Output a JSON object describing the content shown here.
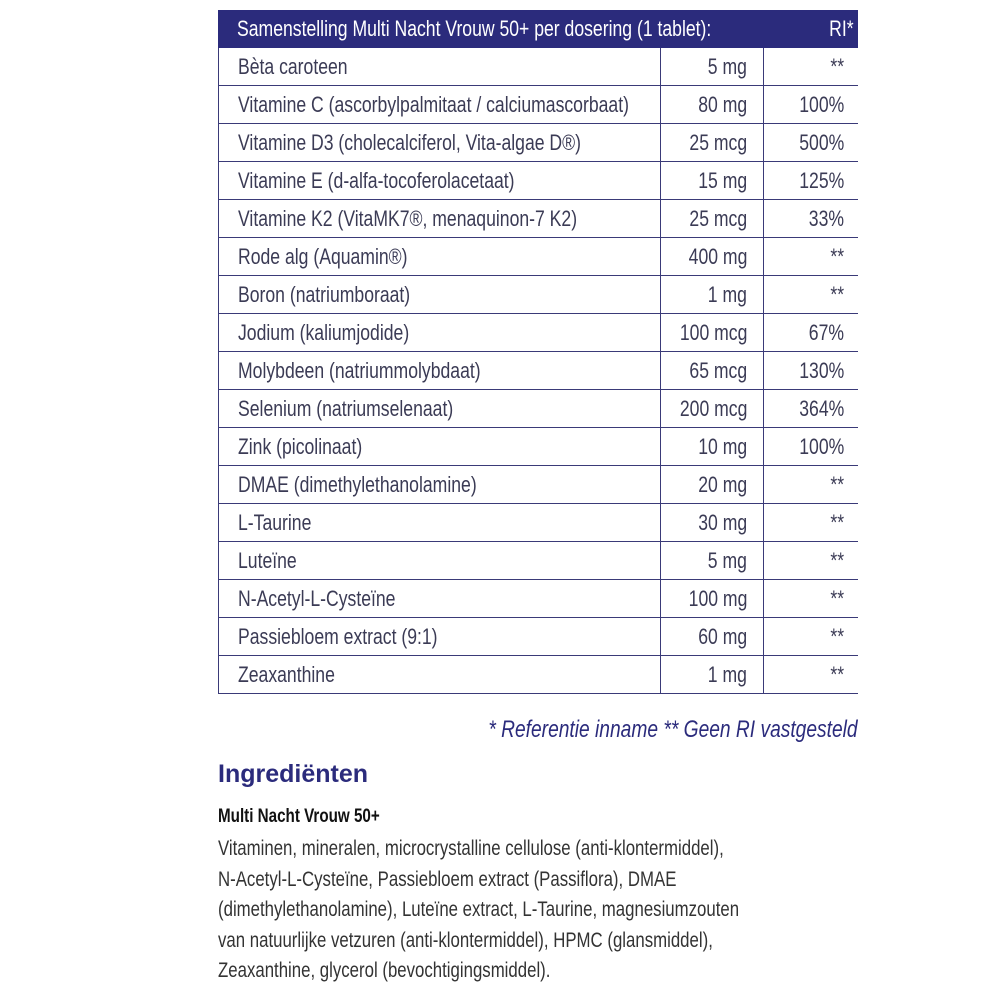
{
  "table": {
    "header": {
      "title": "Samenstelling Multi Nacht Vrouw 50+ per dosering (1 tablet):",
      "ri": "RI*"
    },
    "rows": [
      {
        "name": "Bèta caroteen",
        "amount": "5 mg",
        "ri": "**"
      },
      {
        "name": "Vitamine C (ascorbylpalmitaat / calciumascorbaat)",
        "amount": "80 mg",
        "ri": "100%"
      },
      {
        "name": "Vitamine D3 (cholecalciferol, Vita-algae D®)",
        "amount": "25 mcg",
        "ri": "500%"
      },
      {
        "name": "Vitamine E (d-alfa-tocoferolacetaat)",
        "amount": "15 mg",
        "ri": "125%"
      },
      {
        "name": "Vitamine K2 (VitaMK7®, menaquinon-7 K2)",
        "amount": "25 mcg",
        "ri": "33%"
      },
      {
        "name": "Rode alg (Aquamin®)",
        "amount": "400 mg",
        "ri": "**"
      },
      {
        "name": "Boron (natriumboraat)",
        "amount": "1 mg",
        "ri": "**"
      },
      {
        "name": "Jodium (kaliumjodide)",
        "amount": "100 mcg",
        "ri": "67%"
      },
      {
        "name": "Molybdeen (natriummolybdaat)",
        "amount": "65 mcg",
        "ri": "130%"
      },
      {
        "name": "Selenium (natriumselenaat)",
        "amount": "200 mcg",
        "ri": "364%"
      },
      {
        "name": "Zink (picolinaat)",
        "amount": "10 mg",
        "ri": "100%"
      },
      {
        "name": "DMAE (dimethylethanolamine)",
        "amount": "20 mg",
        "ri": "**"
      },
      {
        "name": "L-Taurine",
        "amount": "30 mg",
        "ri": "**"
      },
      {
        "name": "Luteïne",
        "amount": "5 mg",
        "ri": "**"
      },
      {
        "name": "N-Acetyl-L-Cysteïne",
        "amount": "100 mg",
        "ri": "**"
      },
      {
        "name": "Passiebloem extract (9:1)",
        "amount": "60 mg",
        "ri": "**"
      },
      {
        "name": "Zeaxanthine",
        "amount": "1 mg",
        "ri": "**"
      }
    ]
  },
  "footnote": "* Referentie inname  ** Geen RI vastgesteld",
  "ingredients": {
    "title": "Ingrediënten",
    "product": "Multi Nacht Vrouw 50+",
    "lines": [
      "Vitaminen, mineralen, microcrystalline cellulose (anti-klontermiddel),",
      "N-Acetyl-L-Cysteïne, Passiebloem extract (Passiflora), DMAE",
      "(dimethylethanolamine), Luteïne extract, L-Taurine, magnesiumzouten",
      "van natuurlijke vetzuren (anti-klontermiddel), HPMC (glansmiddel),",
      "Zeaxanthine, glycerol (bevochtigingsmiddel)."
    ]
  },
  "colors": {
    "navy": "#2b2b7c",
    "border": "#3a3a78"
  }
}
